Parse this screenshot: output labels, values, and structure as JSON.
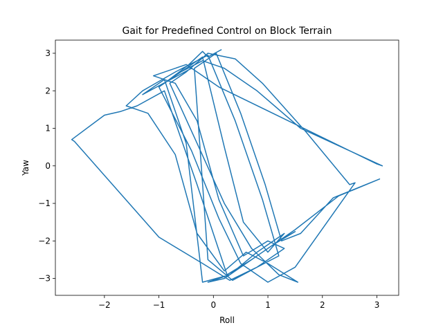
{
  "chart_data": {
    "type": "line",
    "title": "Gait for Predefined Control on Block Terrain",
    "xlabel": "Roll",
    "ylabel": "Yaw",
    "xlim": [
      -2.9,
      3.4
    ],
    "ylim": [
      -3.45,
      3.35
    ],
    "xticks": [
      -2,
      -1,
      0,
      1,
      2,
      3
    ],
    "yticks": [
      -3,
      -2,
      -1,
      0,
      1,
      2,
      3
    ],
    "xtick_labels": [
      "−2",
      "−1",
      "0",
      "1",
      "2",
      "3"
    ],
    "ytick_labels": [
      "−3",
      "−2",
      "−1",
      "0",
      "1",
      "2",
      "3"
    ],
    "grid": false,
    "legend": "none",
    "color": "#1f77b4",
    "series": [
      {
        "x": [
          0.15,
          -0.1,
          -0.2,
          -0.45,
          -0.9,
          -0.5,
          -0.2,
          0.2,
          0.55,
          1.0,
          1.3,
          0.8,
          0.3,
          -0.1,
          0.2,
          0.6,
          1.1,
          1.5,
          1.2,
          0.7,
          0.25,
          -0.3,
          -0.9,
          -1.4,
          -1.7,
          -2.0,
          -2.6,
          -2.55,
          -1.0,
          -0.2,
          0.3,
          0.8,
          1.3,
          1.0,
          0.55,
          0.1,
          -0.3,
          -0.7,
          -1.1,
          -0.5,
          0.1,
          3.0,
          3.1,
          1.6,
          0.8,
          0.2,
          -0.2,
          -0.6,
          -1.0,
          -0.4,
          0.1,
          0.5,
          1.0,
          1.5,
          2.6,
          2.5,
          1.7,
          0.9,
          0.4,
          -0.1,
          -0.5,
          -0.8,
          -0.3,
          0.2,
          0.7,
          1.2,
          1.55,
          1.0,
          0.6,
          0.2,
          -0.3,
          -0.7,
          -1.2,
          -1.6,
          -1.3,
          -0.7,
          -0.1,
          0.4,
          0.9,
          1.2,
          0.8,
          0.35,
          -0.1,
          -0.35,
          0.05,
          0.5,
          0.95,
          1.25,
          1.6,
          2.2,
          3.05,
          2.3,
          1.5,
          0.8,
          0.3,
          -0.2,
          -0.5,
          -0.9,
          -1.3,
          -0.4
        ],
        "y": [
          3.1,
          2.9,
          3.05,
          2.7,
          2.2,
          2.6,
          2.9,
          0.5,
          -1.5,
          -2.3,
          -1.8,
          -2.3,
          -2.9,
          -3.1,
          -3.0,
          -2.6,
          -2.1,
          -1.75,
          -2.0,
          -2.5,
          -2.9,
          -0.5,
          2.0,
          1.6,
          1.45,
          1.35,
          0.7,
          0.65,
          -1.9,
          -2.6,
          -3.05,
          -2.7,
          -2.2,
          -2.0,
          -2.4,
          -0.9,
          1.2,
          2.2,
          2.4,
          2.7,
          2.1,
          0.05,
          0.0,
          1.0,
          2.0,
          2.6,
          2.8,
          2.5,
          2.1,
          0.4,
          -1.4,
          -2.6,
          -3.1,
          -2.7,
          -0.45,
          -0.5,
          0.9,
          2.2,
          2.85,
          3.0,
          2.5,
          2.2,
          0.6,
          -1.0,
          -2.2,
          -2.9,
          -3.1,
          -2.6,
          -2.3,
          -2.8,
          -1.8,
          0.3,
          1.4,
          1.6,
          2.0,
          2.5,
          2.95,
          1.2,
          -0.9,
          -2.4,
          -2.7,
          -3.05,
          -2.5,
          2.6,
          3.0,
          1.4,
          -0.5,
          -2.0,
          -1.8,
          -0.85,
          -0.35,
          -0.8,
          -1.7,
          -2.4,
          -2.9,
          -3.1,
          0.6,
          2.3,
          1.9,
          2.6
        ]
      }
    ]
  }
}
